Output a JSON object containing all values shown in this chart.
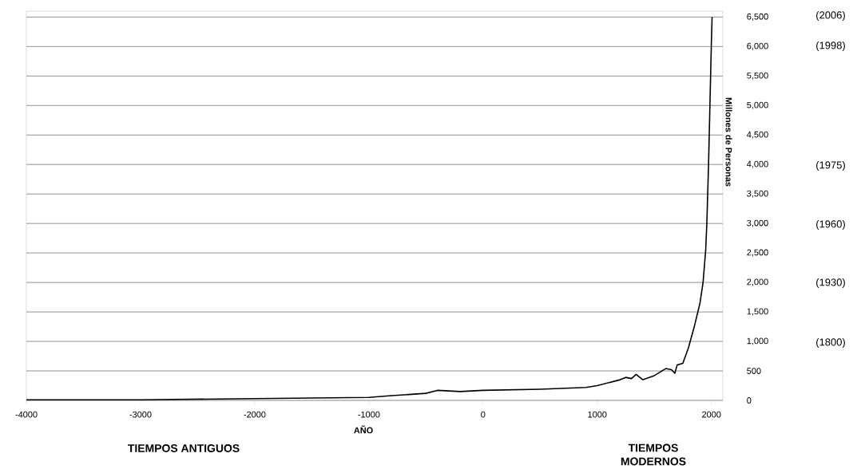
{
  "chart_data": {
    "type": "line",
    "xlabel": "AÑO",
    "ylabel": "Millones de Personas",
    "x": [
      -4000,
      -3000,
      -2000,
      -1500,
      -1000,
      -800,
      -500,
      -400,
      -200,
      0,
      500,
      900,
      1000,
      1200,
      1250,
      1300,
      1340,
      1400,
      1500,
      1600,
      1650,
      1680,
      1700,
      1750,
      1800,
      1850,
      1900,
      1927,
      1950,
      1960,
      1975,
      1987,
      1999,
      2006
    ],
    "values": [
      10,
      10,
      30,
      40,
      50,
      80,
      120,
      170,
      150,
      170,
      190,
      220,
      250,
      350,
      390,
      370,
      440,
      350,
      420,
      540,
      520,
      460,
      600,
      630,
      900,
      1250,
      1650,
      2000,
      2550,
      3000,
      4000,
      5000,
      6000,
      6500
    ],
    "color": "#000000",
    "xlim": [
      -4000,
      2100
    ],
    "xticks": [
      -4000,
      -3000,
      -2000,
      -1000,
      0,
      1000,
      2000
    ],
    "ylim": [
      0,
      6600
    ],
    "yticks": [
      0,
      500,
      {
        "value": 1000,
        "label": "1,000"
      },
      {
        "value": 1500,
        "label": "1,500"
      },
      {
        "value": 2000,
        "label": "2,000"
      },
      {
        "value": 2500,
        "label": "2,500"
      },
      {
        "value": 3000,
        "label": "3,000"
      },
      {
        "value": 3500,
        "label": "3,500"
      },
      {
        "value": 4000,
        "label": "4,000"
      },
      {
        "value": 4500,
        "label": "4,500"
      },
      {
        "value": 5000,
        "label": "5,000"
      },
      {
        "value": 5500,
        "label": "5,500"
      },
      {
        "value": 6000,
        "label": "6,000"
      },
      {
        "value": 6500,
        "label": "6,500"
      }
    ],
    "grid": "y",
    "marker": "none",
    "line_style": "solid",
    "annotations": [
      "(2006)",
      "(1998)",
      "(1975)",
      "(1960)",
      "(1930)",
      "(1800)",
      "TIEMPOS ANTIGUOS",
      "TIEMPOS MODERNOS"
    ]
  }
}
